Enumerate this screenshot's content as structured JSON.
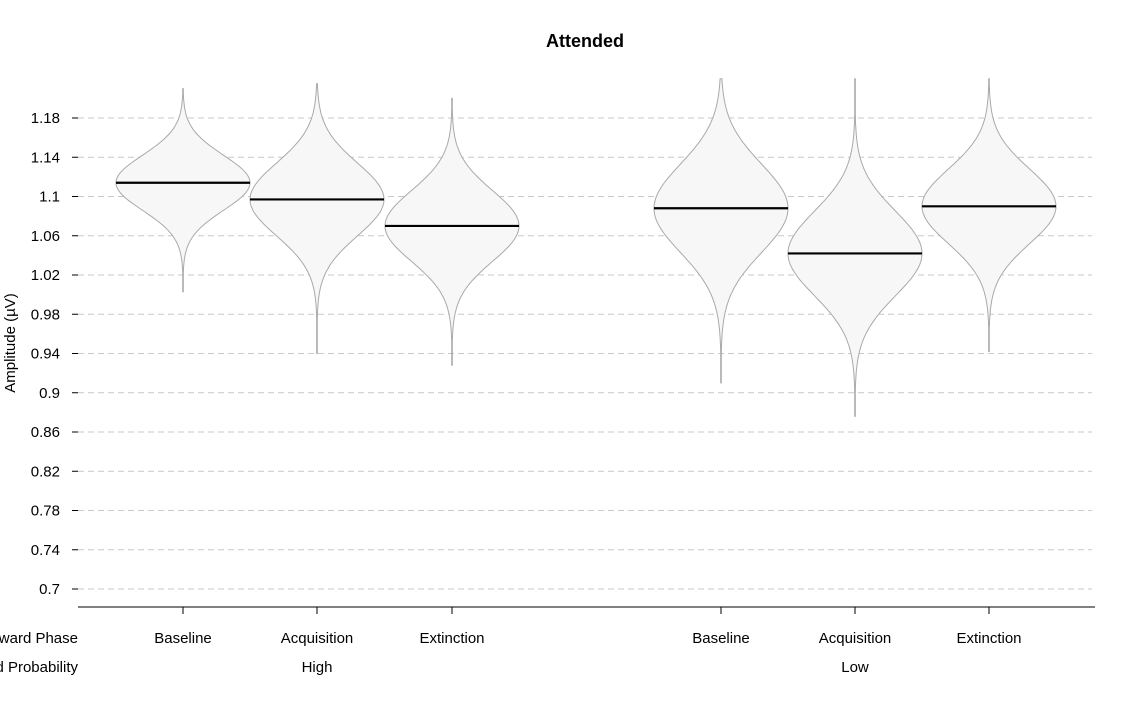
{
  "chart_data": {
    "type": "violin",
    "title": "Attended",
    "ylabel": "Amplitude (µV)",
    "yticks": [
      "0.7",
      "0.74",
      "0.78",
      "0.82",
      "0.86",
      "0.9",
      "0.94",
      "0.98",
      "1.02",
      "1.06",
      "1.1",
      "1.14",
      "1.18"
    ],
    "ylim": [
      0.68,
      1.24
    ],
    "grid": true,
    "row_labels": [
      "Reward Phase",
      "Reward Probability"
    ],
    "groups": [
      {
        "label": "High",
        "items": [
          {
            "label": "Baseline",
            "median": 1.114,
            "min": 1.003,
            "max": 1.21,
            "spread": 0.028,
            "mode": 1.114
          },
          {
            "label": "Acquisition",
            "median": 1.097,
            "min": 0.94,
            "max": 1.215,
            "spread": 0.037,
            "mode": 1.097
          },
          {
            "label": "Extinction",
            "median": 1.07,
            "min": 0.928,
            "max": 1.2,
            "spread": 0.036,
            "mode": 1.07
          }
        ]
      },
      {
        "label": "Low",
        "items": [
          {
            "label": "Baseline",
            "median": 1.088,
            "min": 0.91,
            "max": 1.22,
            "spread": 0.045,
            "mode": 1.088
          },
          {
            "label": "Acquisition",
            "median": 1.042,
            "min": 0.876,
            "max": 1.22,
            "spread": 0.043,
            "mode": 1.042
          },
          {
            "label": "Extinction",
            "median": 1.09,
            "min": 0.942,
            "max": 1.22,
            "spread": 0.038,
            "mode": 1.09
          }
        ]
      }
    ]
  }
}
